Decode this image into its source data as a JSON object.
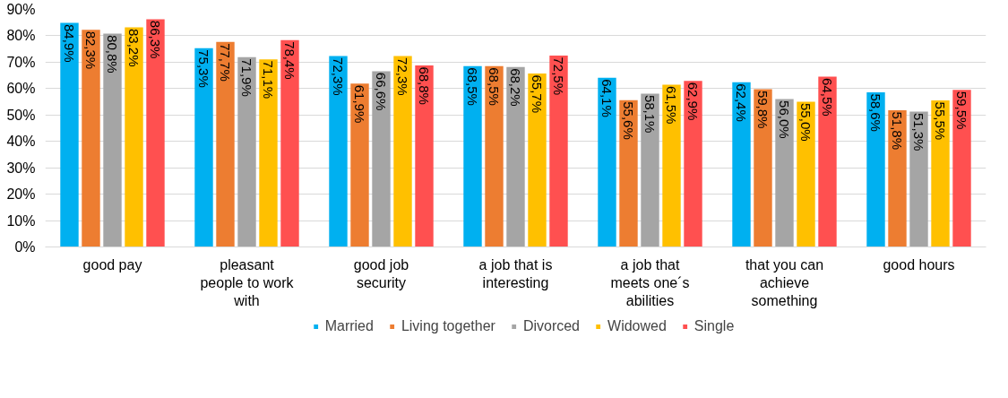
{
  "chart_data": {
    "type": "bar",
    "categories": [
      "good pay",
      "pleasant people to work with",
      "good job security",
      "a job that is interesting",
      "a job that meets one´s abilities",
      "that you can achieve something",
      "good hours"
    ],
    "series": [
      {
        "name": "Married",
        "color": "#00b0f0",
        "values": [
          84.9,
          75.3,
          72.3,
          68.5,
          64.1,
          62.4,
          58.6
        ],
        "value_labels": [
          "84,9%",
          "75,3%",
          "72,3%",
          "68,5%",
          "64,1%",
          "62,4%",
          "58,6%"
        ]
      },
      {
        "name": "Living together",
        "color": "#ed7d31",
        "values": [
          82.3,
          77.7,
          61.9,
          68.5,
          55.6,
          59.8,
          51.8
        ],
        "value_labels": [
          "82,3%",
          "77,7%",
          "61,9%",
          "68,5%",
          "55,6%",
          "59,8%",
          "51,8%"
        ]
      },
      {
        "name": "Divorced",
        "color": "#a5a5a5",
        "values": [
          80.8,
          71.9,
          66.6,
          68.2,
          58.1,
          56.0,
          51.3
        ],
        "value_labels": [
          "80,8%",
          "71,9%",
          "66,6%",
          "68,2%",
          "58,1%",
          "56,0%",
          "51,3%"
        ]
      },
      {
        "name": "Widowed",
        "color": "#ffc000",
        "values": [
          83.2,
          71.1,
          72.3,
          65.7,
          61.5,
          55.0,
          55.5
        ],
        "value_labels": [
          "83,2%",
          "71,1%",
          "72,3%",
          "65,7%",
          "61,5%",
          "55,0%",
          "55,5%"
        ]
      },
      {
        "name": "Single",
        "color": "#ff5050",
        "values": [
          86.3,
          78.4,
          68.8,
          72.5,
          62.9,
          64.5,
          59.5
        ],
        "value_labels": [
          "86,3%",
          "78,4%",
          "68,8%",
          "72,5%",
          "62,9%",
          "64,5%",
          "59,5%"
        ]
      }
    ],
    "ylim": [
      0,
      90
    ],
    "yticks": [
      {
        "value": 0,
        "label": "0%"
      },
      {
        "value": 10,
        "label": "10%"
      },
      {
        "value": 20,
        "label": "20%"
      },
      {
        "value": 30,
        "label": "30%"
      },
      {
        "value": 40,
        "label": "40%"
      },
      {
        "value": 50,
        "label": "50%"
      },
      {
        "value": 60,
        "label": "60%"
      },
      {
        "value": 70,
        "label": "70%"
      },
      {
        "value": 80,
        "label": "80%"
      },
      {
        "value": 90,
        "label": "90%"
      }
    ],
    "grid": "y",
    "legend": "bottom"
  }
}
